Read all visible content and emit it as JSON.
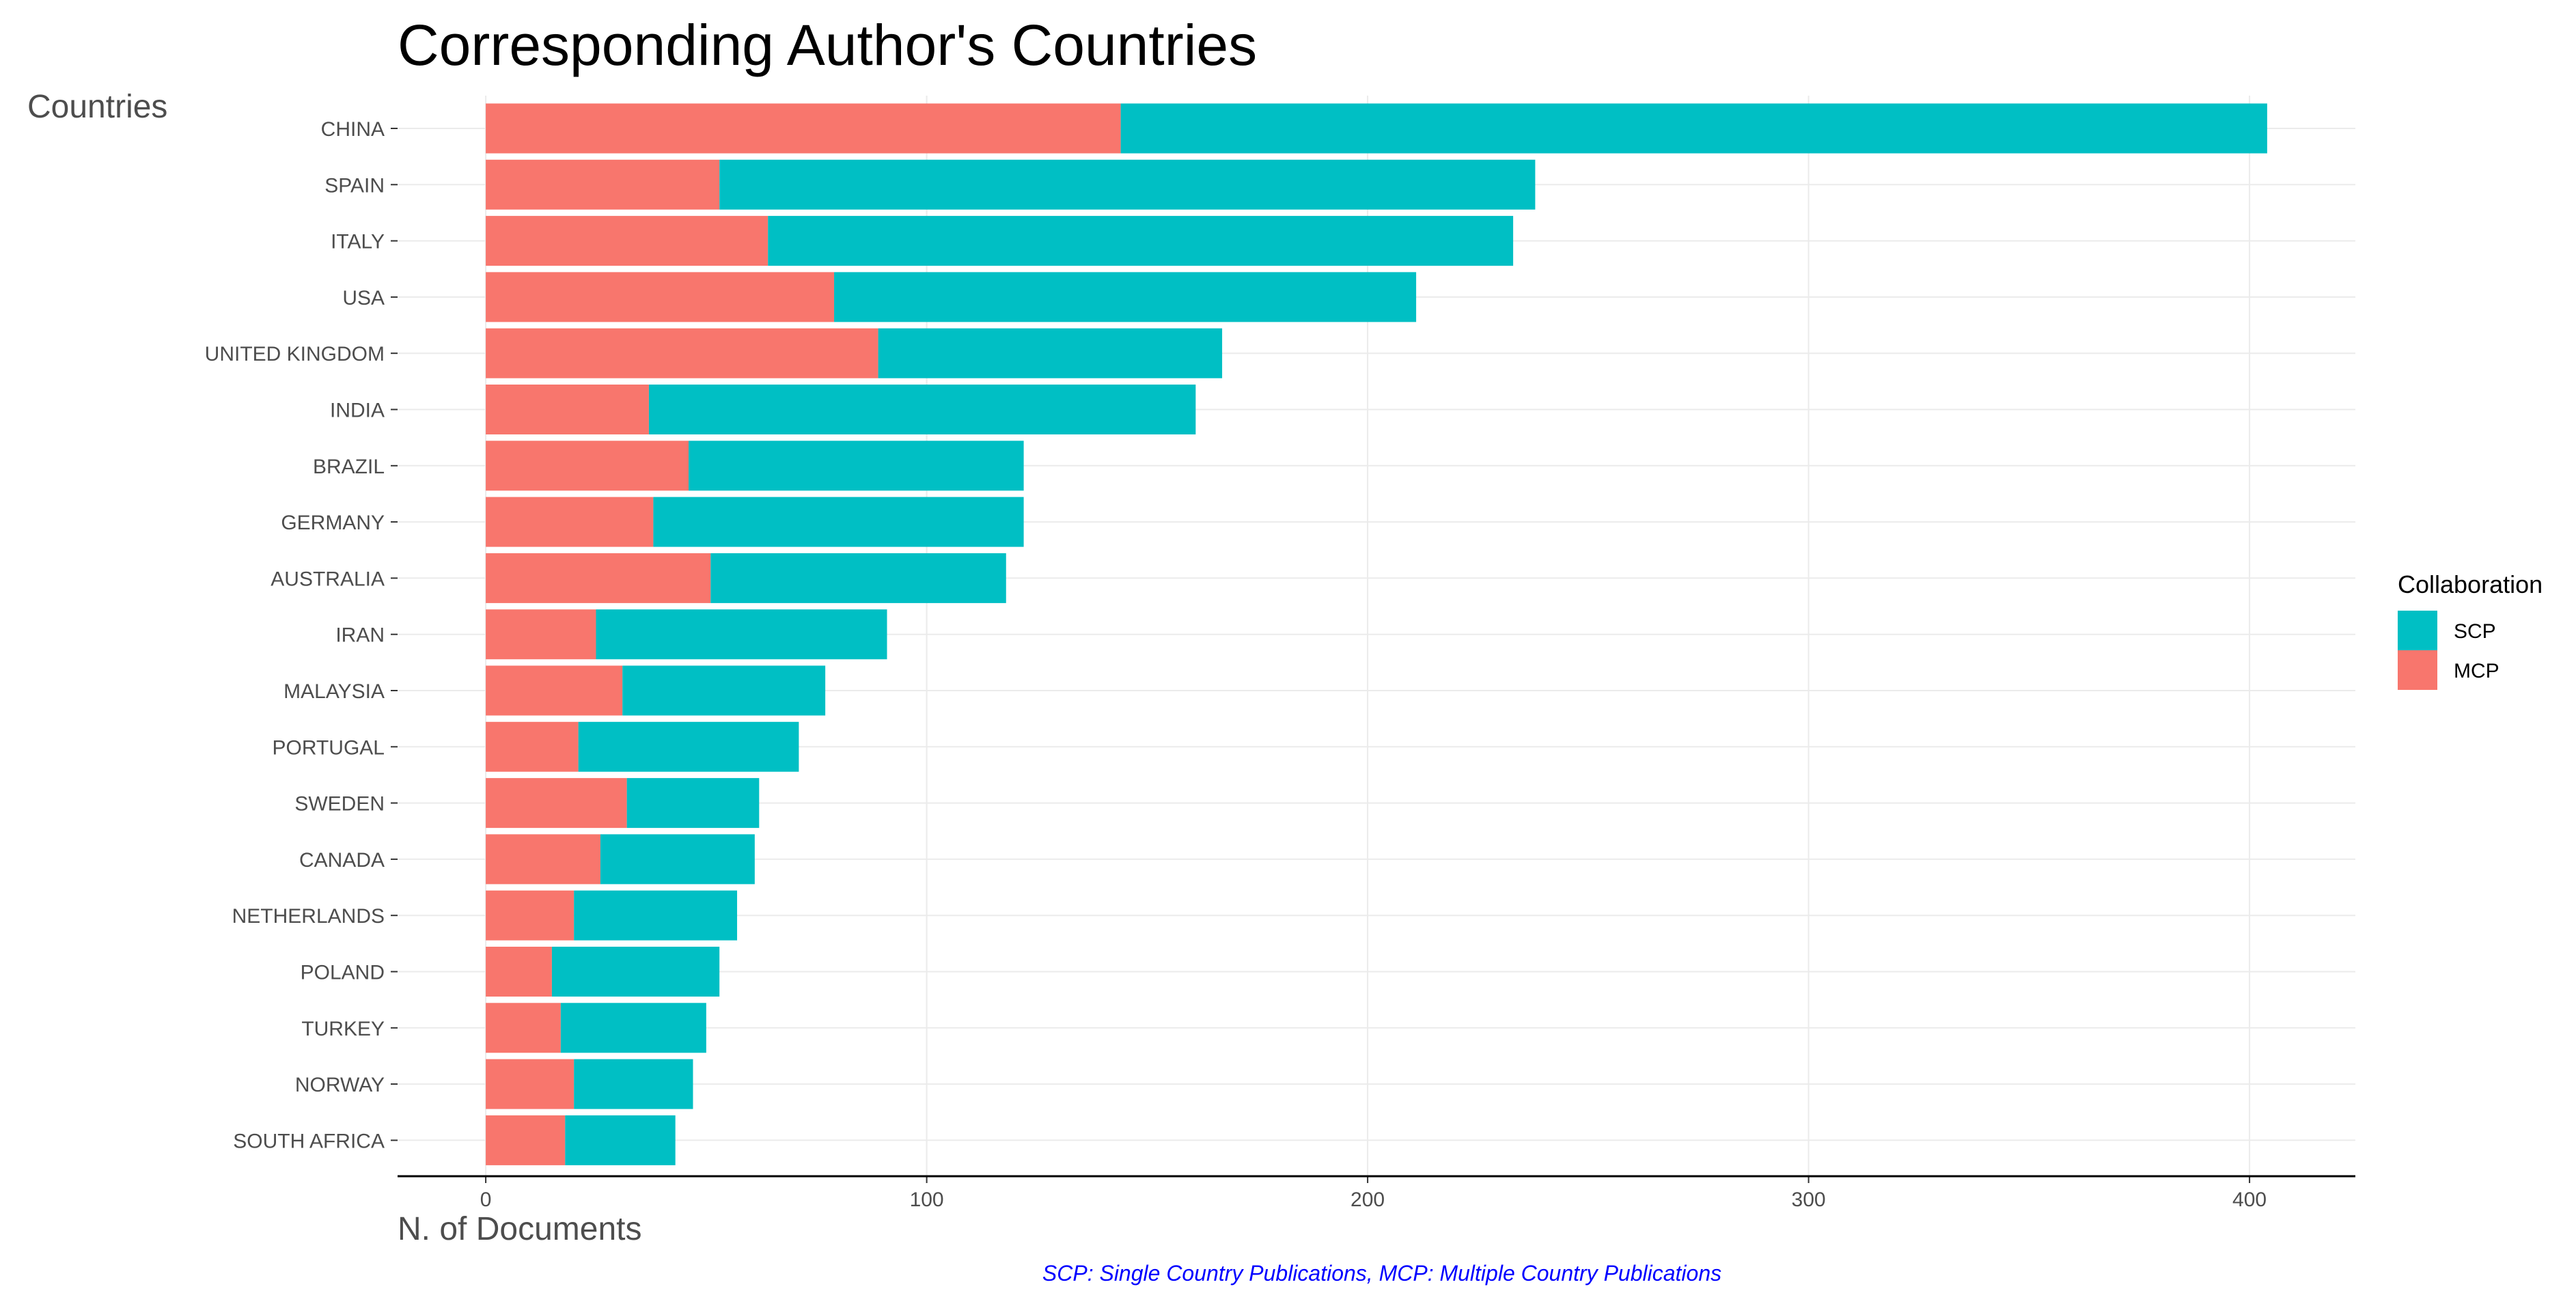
{
  "chart_data": {
    "type": "bar",
    "orientation": "horizontal",
    "stacked": true,
    "title": "Corresponding Author's Countries",
    "ylabel": "Countries",
    "xlabel": "N. of Documents",
    "caption": "SCP: Single Country Publications, MCP: Multiple Country Publications",
    "xlim": [
      -20,
      424
    ],
    "xticks": [
      0,
      100,
      200,
      300,
      400
    ],
    "grid": true,
    "legend": {
      "title": "Collaboration",
      "position": "right",
      "entries": [
        "SCP",
        "MCP"
      ]
    },
    "categories": [
      "CHINA",
      "SPAIN",
      "ITALY",
      "USA",
      "UNITED KINGDOM",
      "INDIA",
      "BRAZIL",
      "GERMANY",
      "AUSTRALIA",
      "IRAN",
      "MALAYSIA",
      "PORTUGAL",
      "SWEDEN",
      "CANADA",
      "NETHERLANDS",
      "POLAND",
      "TURKEY",
      "NORWAY",
      "SOUTH AFRICA"
    ],
    "series": [
      {
        "name": "MCP",
        "color": "#F8766D",
        "values": [
          144,
          53,
          64,
          79,
          89,
          37,
          46,
          38,
          51,
          25,
          31,
          21,
          32,
          26,
          20,
          15,
          17,
          20,
          18
        ]
      },
      {
        "name": "SCP",
        "color": "#00BFC4",
        "values": [
          260,
          185,
          169,
          132,
          78,
          124,
          76,
          84,
          67,
          66,
          46,
          50,
          30,
          35,
          37,
          38,
          33,
          27,
          25
        ]
      }
    ]
  }
}
